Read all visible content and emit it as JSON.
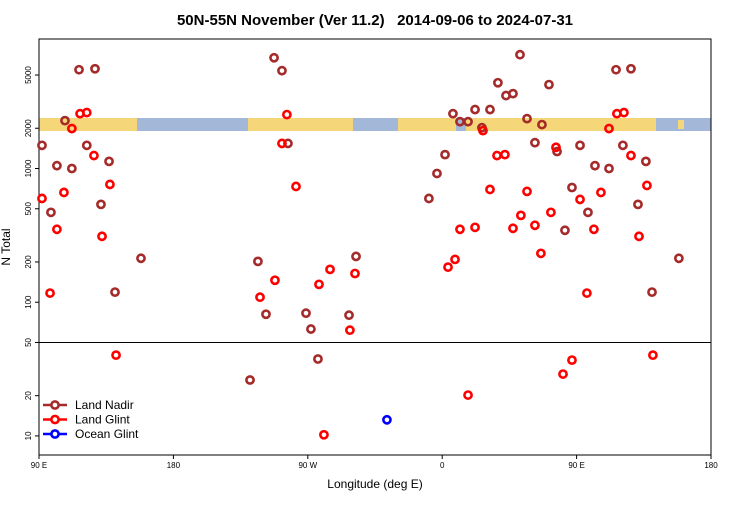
{
  "chart_data": {
    "type": "scatter",
    "title": "50N-55N November (Ver 11.2)   2014-09-06 to 2024-07-31",
    "xlabel": "Longitude (deg E)",
    "ylabel": "N Total",
    "xlim": [
      90,
      540
    ],
    "xticks": [
      {
        "value": 90,
        "label": "90 E"
      },
      180,
      {
        "value": 270,
        "label": "90 W"
      },
      {
        "value": 360,
        "label": "0"
      },
      {
        "value": 450,
        "label": "90 E"
      },
      {
        "value": 540,
        "label": "180"
      }
    ],
    "ylim": [
      7.2,
      9300
    ],
    "ylog": true,
    "yticks": [
      10,
      20,
      50,
      100,
      200,
      500,
      1000,
      2000,
      5000
    ],
    "hline": 50,
    "legend": "lower left",
    "series": [
      {
        "name": "Land Nadir",
        "color": "#a52a2a",
        "x": [
          92,
          98,
          102,
          107.4,
          112,
          116.8,
          122,
          127.5,
          131.5,
          136.9,
          140.9,
          158.3,
          236.6,
          242,
          247.4,
          252.7,
          256.7,
          268.8,
          272.1,
          276.8,
          297.6,
          302.3,
          351.1,
          356.5,
          361.9,
          367.2,
          371.9,
          377.3,
          382,
          386.6,
          392,
          397.3,
          402.7,
          407.4,
          412.1,
          416.8,
          422.1,
          426.8,
          431.5,
          436.9,
          442.2,
          446.9,
          452.3,
          457.6,
          462.3,
          471.7,
          476.4,
          481,
          486.4,
          491.1,
          496.4,
          500.5,
          518.5,
          231.3
        ],
        "values": [
          1490,
          470,
          1050,
          2280,
          1000,
          5480,
          1490,
          5570,
          539,
          1130,
          119,
          213,
          202,
          81.3,
          6730,
          5390,
          1540,
          82.8,
          63,
          37.6,
          80,
          220,
          597,
          918,
          1270,
          2570,
          2240,
          2240,
          2760,
          2020,
          2760,
          4380,
          3510,
          3630,
          7096,
          2360,
          1560,
          2130,
          4240,
          1340,
          345,
          721,
          1490,
          470,
          1050,
          1000,
          5480,
          1490,
          5570,
          539,
          1130,
          119,
          213,
          26.2
        ]
      },
      {
        "name": "Land Glint",
        "color": "#ff0000",
        "x": [
          92,
          97.4,
          102,
          106.7,
          112,
          117.5,
          122,
          126.8,
          132.2,
          137.5,
          141.6,
          238,
          248,
          252.7,
          256,
          262.1,
          277.5,
          284.9,
          298.2,
          301.6,
          280.8,
          363.9,
          368.6,
          371.9,
          382,
          387.3,
          392,
          396.7,
          402,
          407.4,
          412.7,
          416.8,
          422.1,
          426.1,
          432.8,
          436.2,
          440.9,
          446.9,
          452.3,
          456.9,
          461.6,
          466.3,
          471.7,
          477,
          481.7,
          486.4,
          491.8,
          497.1,
          501.1,
          377.3
        ],
        "values": [
          597,
          117,
          351,
          662,
          1990,
          2570,
          2620,
          1250,
          311,
          760,
          40.2,
          109,
          146,
          1540,
          2530,
          734,
          136,
          176,
          61.8,
          164,
          10.2,
          183,
          209,
          351,
          363,
          1920,
          697,
          1250,
          1270,
          357,
          446,
          674,
          376,
          232,
          470,
          1440,
          29,
          36.9,
          587,
          117,
          351,
          662,
          1990,
          2570,
          2620,
          1250,
          311,
          747,
          40.2,
          20.2
        ]
      },
      {
        "name": "Ocean Glint",
        "color": "#0000ff",
        "x": [
          323
        ],
        "values": [
          13.2
        ]
      }
    ]
  }
}
